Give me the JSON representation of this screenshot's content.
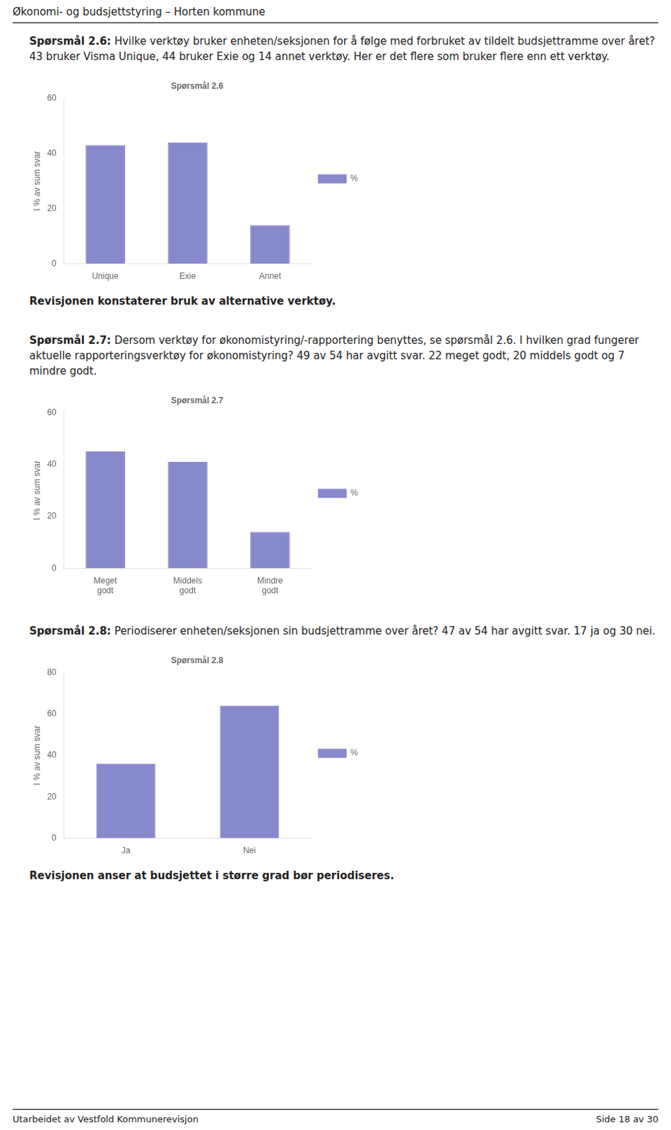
{
  "title": "Økonomi- og budsjettstyring – Horten kommune",
  "annotations": [
    "Utarbeidet av Vestfold Kommunerevisjon",
    "Side 18 av 30"
  ],
  "chart_data": [
    {
      "type": "bar",
      "title": "Spørsmål 2.6",
      "subtitle": "Spørsmål 2.6: Hvilke verktøy bruker enheten/seksjonen for å følge med forbruket av tildelt budsjettramme over året? 43 bruker Visma Unique, 44 bruker Exie og 14 annet verktøy. Her er det flere som bruker flere enn ett verktøy.",
      "categories": [
        "Unique",
        "Exie",
        "Annet"
      ],
      "series": [
        {
          "name": "%",
          "color": "#8888cc",
          "values": [
            43,
            44,
            14
          ]
        }
      ],
      "ylim": [
        0,
        60
      ],
      "yticks": [
        0,
        20,
        40,
        60
      ],
      "ylabel": "I % av sum svar",
      "grid": false,
      "legend": "right",
      "annotations": [
        "Revisjonen konstaterer bruk av alternative verktøy."
      ]
    },
    {
      "type": "bar",
      "title": "Spørsmål 2.7",
      "subtitle": "Spørsmål 2.7: Dersom verktøy for økonomistyring/-rapportering benyttes, se spørsmål 2.6. I hvilken grad fungerer aktuelle rapporteringsverktøy for økonomistyring? 49 av 54 har avgitt svar. 22 meget godt, 20 middels godt og 7 mindre godt.",
      "categories": [
        "Meget\ngodt",
        "Middels\ngodt",
        "Mindre\ngodt"
      ],
      "series": [
        {
          "name": "%",
          "color": "#8888cc",
          "values": [
            45,
            41,
            14
          ]
        }
      ],
      "ylim": [
        0,
        60
      ],
      "yticks": [
        0,
        20,
        40,
        60
      ],
      "ylabel": "I % av sum svar",
      "grid": false,
      "legend": "right"
    },
    {
      "type": "bar",
      "title": "Spørsmål 2.8",
      "subtitle": "Spørsmål 2.8: Periodiserer enheten/seksjonen sin budsjettramme over året? 47 av 54 har avgitt svar. 17 ja og 30 nei.",
      "categories": [
        "Ja",
        "Nei"
      ],
      "series": [
        {
          "name": "%",
          "color": "#8888cc",
          "values": [
            36,
            64
          ]
        }
      ],
      "ylim": [
        0,
        80
      ],
      "yticks": [
        0,
        20,
        40,
        60,
        80
      ],
      "ylabel": "I % av sum svar",
      "grid": false,
      "legend": "right",
      "annotations": [
        "Revisjonen anser at budsjettet i større grad bør periodiseres."
      ]
    }
  ]
}
